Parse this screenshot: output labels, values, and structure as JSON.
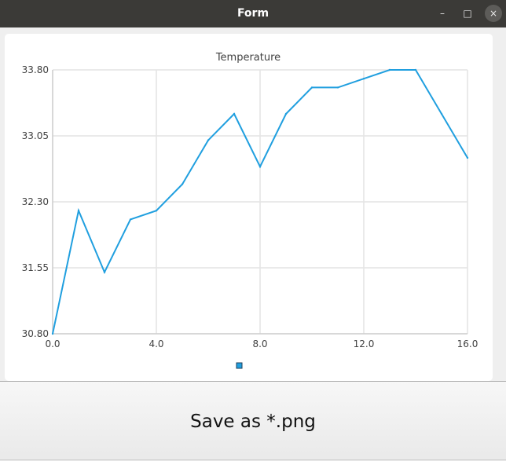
{
  "window": {
    "title": "Form",
    "minimize_glyph": "–",
    "maximize_glyph": "□",
    "close_glyph": "×"
  },
  "save_button": {
    "label": "Save as *.png"
  },
  "chart_data": {
    "type": "line",
    "title": "Temperature",
    "xlabel": "",
    "ylabel": "",
    "x_ticks": [
      "0.0",
      "4.0",
      "8.0",
      "12.0",
      "16.0"
    ],
    "y_ticks": [
      "30.80",
      "31.55",
      "32.30",
      "33.05",
      "33.80"
    ],
    "xlim": [
      0,
      16
    ],
    "ylim": [
      30.8,
      33.8
    ],
    "grid": true,
    "legend": "bottom",
    "color": "#209fdf",
    "series": [
      {
        "x": [
          0,
          1,
          2,
          3,
          4,
          5,
          6,
          7,
          8,
          9,
          10,
          11,
          12,
          13,
          14,
          15,
          16
        ],
        "values": [
          30.8,
          32.2,
          31.5,
          32.1,
          32.2,
          32.5,
          33.0,
          33.3,
          32.7,
          33.3,
          33.6,
          33.6,
          33.7,
          33.8,
          33.8,
          33.3,
          32.8
        ]
      }
    ]
  }
}
